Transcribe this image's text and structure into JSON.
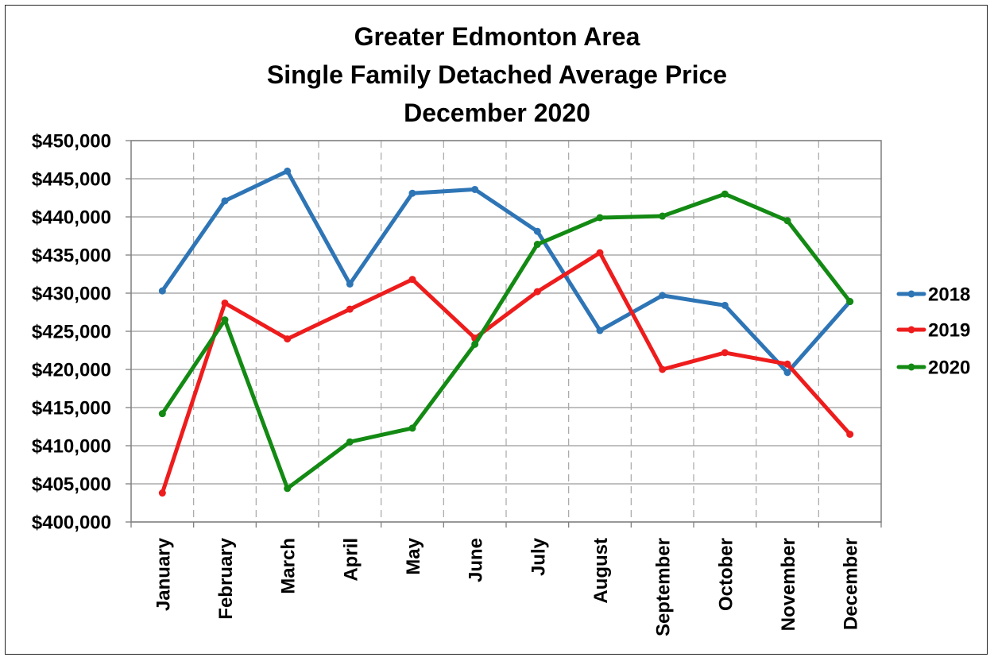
{
  "chart_data": {
    "type": "line",
    "title": [
      "Greater Edmonton Area",
      "Single Family Detached Average Price",
      "December 2020"
    ],
    "xlabel": "",
    "ylabel": "",
    "categories": [
      "January",
      "February",
      "March",
      "April",
      "May",
      "June",
      "July",
      "August",
      "September",
      "October",
      "November",
      "December"
    ],
    "ylim": [
      400000,
      450000
    ],
    "ytick_values": [
      400000,
      405000,
      410000,
      415000,
      420000,
      425000,
      430000,
      435000,
      440000,
      445000,
      450000
    ],
    "ytick_labels": [
      "$400,000",
      "$405,000",
      "$410,000",
      "$415,000",
      "$420,000",
      "$425,000",
      "$430,000",
      "$435,000",
      "$440,000",
      "$445,000",
      "$450,000"
    ],
    "grid": {
      "horizontal": "solid",
      "vertical": "dashed"
    },
    "legend_position": "right",
    "series": [
      {
        "name": "2018",
        "color": "#2E75B6",
        "values": [
          430300,
          442100,
          446000,
          431200,
          443100,
          443600,
          438100,
          425100,
          429700,
          428400,
          419600,
          428900
        ]
      },
      {
        "name": "2019",
        "color": "#EE1C1C",
        "values": [
          403800,
          428700,
          424000,
          427900,
          431800,
          424100,
          430200,
          435300,
          420000,
          422200,
          420700,
          411500
        ]
      },
      {
        "name": "2020",
        "color": "#138A13",
        "values": [
          414200,
          426500,
          404400,
          410500,
          412300,
          423300,
          436400,
          439900,
          440100,
          443000,
          439500,
          428900
        ]
      }
    ]
  }
}
